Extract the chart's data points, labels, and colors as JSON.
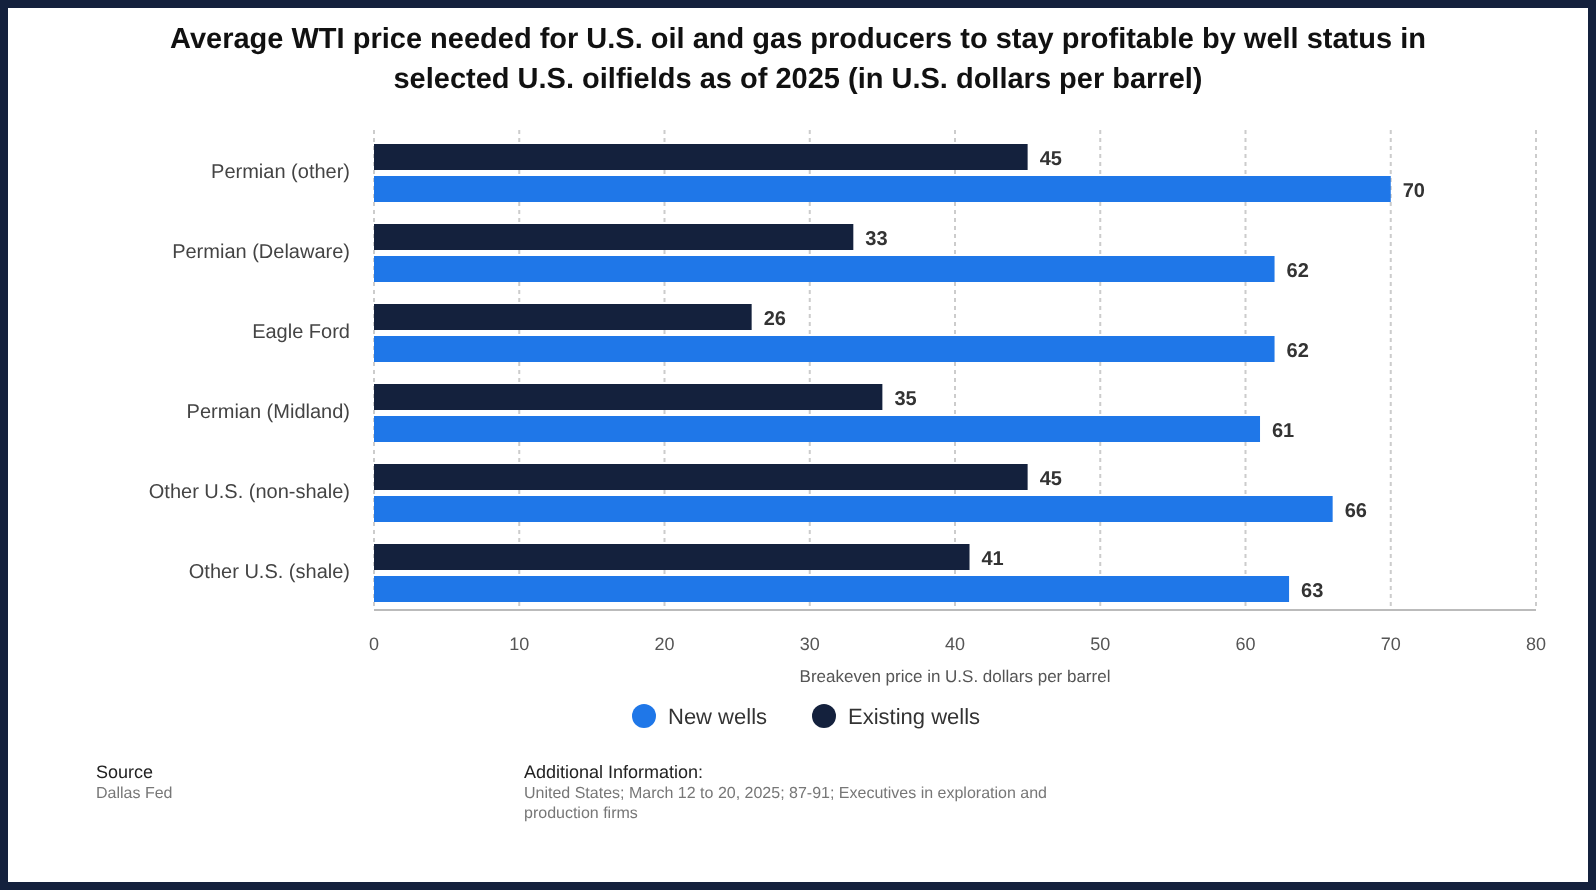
{
  "chart_data": {
    "type": "bar",
    "orientation": "horizontal",
    "title": "Average WTI price needed for U.S. oil and gas producers to stay profitable by well status in selected U.S. oilfields as of 2025 (in U.S. dollars per barrel)",
    "categories": [
      "Permian (other)",
      "Permian (Delaware)",
      "Eagle Ford",
      "Permian (Midland)",
      "Other U.S. (non-shale)",
      "Other U.S. (shale)"
    ],
    "series": [
      {
        "name": "New wells",
        "color": "#1f77e8",
        "values": [
          70,
          62,
          62,
          61,
          66,
          63
        ]
      },
      {
        "name": "Existing wells",
        "color": "#14213d",
        "values": [
          45,
          33,
          26,
          35,
          45,
          41
        ]
      }
    ],
    "xlabel": "Breakeven price in U.S. dollars per barrel",
    "xlim": [
      0,
      80
    ],
    "xticks": [
      0,
      10,
      20,
      30,
      40,
      50,
      60,
      70,
      80
    ],
    "grid": "x",
    "legend": "bottom",
    "data_labels": true,
    "annotations": [
      "Source",
      "Dallas Fed",
      "Additional Information:",
      "United States; March 12 to 20, 2025; 87-91; Executives in exploration and production firms"
    ]
  }
}
